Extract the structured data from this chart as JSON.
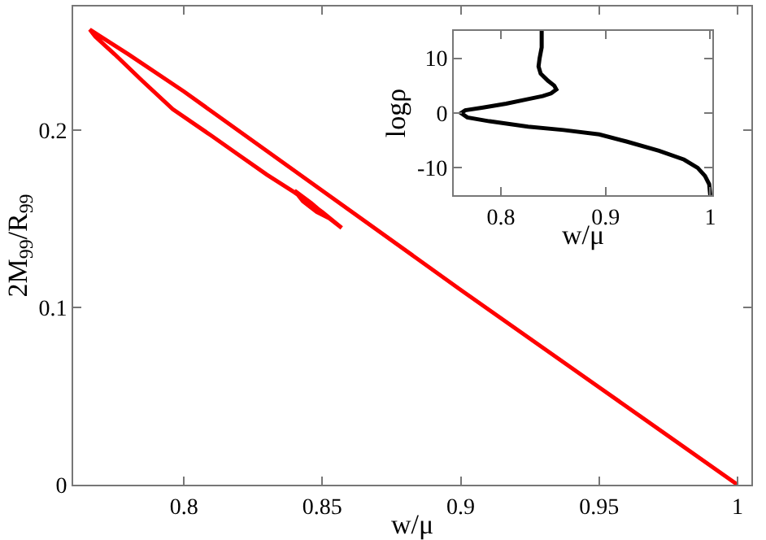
{
  "chart_data": [
    {
      "type": "line",
      "xlabel": "w/μ",
      "ylabel": "2M$_{99}$/R$_{99}$",
      "xlim": [
        0.76,
        1.005
      ],
      "ylim": [
        0,
        0.27
      ],
      "xticks": [
        0.8,
        0.85,
        0.9,
        0.95,
        1
      ],
      "yticks": [
        0,
        0.1,
        0.2
      ],
      "series": [
        {
          "color": "#ff0000",
          "x": [
            1,
            0.95,
            0.9,
            0.85,
            0.8,
            0.78,
            0.77,
            0.766,
            0.768,
            0.775,
            0.785,
            0.796,
            0.81,
            0.82,
            0.83,
            0.84,
            0.85,
            0.857,
            0.852,
            0.846,
            0.84,
            0.843,
            0.848,
            0.853
          ],
          "values": [
            0,
            0.055,
            0.11,
            0.166,
            0.222,
            0.243,
            0.253,
            0.257,
            0.253,
            0.243,
            0.228,
            0.212,
            0.197,
            0.186,
            0.175,
            0.165,
            0.154,
            0.145,
            0.151,
            0.159,
            0.166,
            0.16,
            0.154,
            0.15
          ]
        }
      ]
    },
    {
      "type": "line",
      "xlabel": "w/μ",
      "ylabel": "logρ",
      "xlim": [
        0.755,
        1.002
      ],
      "ylim": [
        -15,
        15
      ],
      "xticks": [
        0.8,
        0.9,
        1
      ],
      "yticks": [
        -10,
        0,
        10
      ],
      "series": [
        {
          "color": "#000000",
          "x": [
            1,
            0.999,
            0.995,
            0.988,
            0.975,
            0.951,
            0.92,
            0.894,
            0.86,
            0.826,
            0.789,
            0.768,
            0.762,
            0.766,
            0.783,
            0.805,
            0.825,
            0.84,
            0.848,
            0.853,
            0.851,
            0.845,
            0.838,
            0.836,
            0.837,
            0.839,
            0.839
          ],
          "values": [
            -15,
            -13,
            -11.5,
            -10,
            -8.5,
            -6.9,
            -5.2,
            -3.9,
            -3.1,
            -2.5,
            -1.5,
            -0.8,
            0,
            0.5,
            1,
            1.7,
            2.5,
            3.1,
            3.6,
            4.3,
            5,
            5.9,
            7.2,
            8.5,
            10,
            12,
            15
          ]
        }
      ]
    }
  ]
}
